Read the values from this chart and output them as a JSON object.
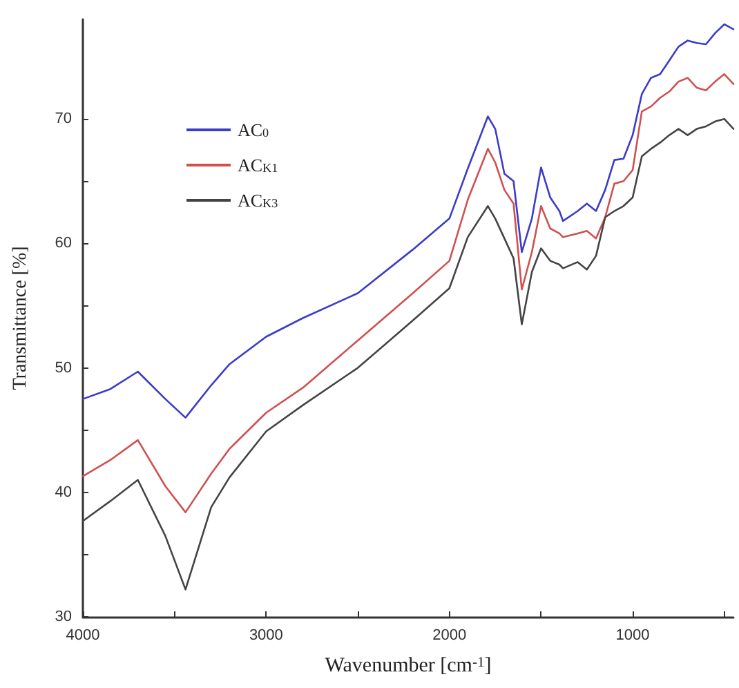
{
  "chart_data": {
    "type": "line",
    "xlabel": "Wavenumber [cm$^{-1}$]",
    "ylabel": "Transmittance [%]",
    "xlim": [
      4000,
      450
    ],
    "ylim": [
      30,
      78
    ],
    "xticks": [
      4000,
      {
        "value": 3500,
        "label": null
      },
      3000,
      {
        "value": 2500,
        "label": null
      },
      2000,
      {
        "value": 1500,
        "label": null
      },
      1000,
      {
        "value": 500,
        "label": null
      }
    ],
    "yticks": [
      30,
      {
        "value": 35,
        "label": null
      },
      40,
      {
        "value": 45,
        "label": null
      },
      50,
      {
        "value": 55,
        "label": null
      },
      60,
      {
        "value": 65,
        "label": null
      },
      70
    ],
    "grid": false,
    "legend": "top left",
    "marker": "none",
    "line_style": "solid",
    "x": [
      4000,
      3850,
      3700,
      3550,
      3440,
      3300,
      3200,
      3000,
      2800,
      2500,
      2200,
      2000,
      1900,
      1790,
      1750,
      1700,
      1650,
      1605,
      1550,
      1500,
      1450,
      1400,
      1380,
      1300,
      1250,
      1200,
      1150,
      1100,
      1050,
      1000,
      950,
      900,
      850,
      800,
      750,
      700,
      650,
      600,
      550,
      500,
      450
    ],
    "series": [
      {
        "name": "AC$_{0}$",
        "color": "#3c3cc8",
        "values": [
          47.5,
          48.3,
          49.7,
          47.5,
          46.0,
          48.6,
          50.3,
          52.5,
          54.0,
          56.0,
          59.5,
          62.0,
          66.0,
          70.2,
          69.2,
          65.6,
          65.0,
          59.3,
          62.0,
          66.1,
          63.7,
          62.6,
          61.8,
          62.6,
          63.2,
          62.6,
          64.3,
          66.7,
          66.8,
          68.7,
          72.0,
          73.3,
          73.6,
          74.7,
          75.8,
          76.3,
          76.1,
          76.0,
          76.9,
          77.6,
          77.2
        ]
      },
      {
        "name": "AC$_{K1}$",
        "color": "#d05050",
        "values": [
          41.3,
          42.6,
          44.2,
          40.5,
          38.4,
          41.5,
          43.5,
          46.4,
          48.4,
          52.2,
          56.0,
          58.6,
          63.5,
          67.6,
          66.5,
          64.3,
          63.2,
          56.3,
          59.3,
          63.0,
          61.2,
          60.8,
          60.5,
          60.8,
          61.0,
          60.4,
          62.1,
          64.8,
          65.0,
          65.9,
          70.6,
          71.0,
          71.7,
          72.2,
          73.0,
          73.3,
          72.5,
          72.3,
          73.0,
          73.6,
          72.8
        ]
      },
      {
        "name": "AC$_{K3}$",
        "color": "#444444",
        "values": [
          37.7,
          39.3,
          41.0,
          36.5,
          32.2,
          38.8,
          41.2,
          44.9,
          47.0,
          50.0,
          53.8,
          56.4,
          60.5,
          63.0,
          62.0,
          60.4,
          58.8,
          53.5,
          57.7,
          59.6,
          58.6,
          58.3,
          58.0,
          58.5,
          57.9,
          59.0,
          62.1,
          62.6,
          63.0,
          63.7,
          67.0,
          67.6,
          68.1,
          68.7,
          69.2,
          68.7,
          69.2,
          69.4,
          69.8,
          70.0,
          69.2
        ]
      }
    ]
  }
}
